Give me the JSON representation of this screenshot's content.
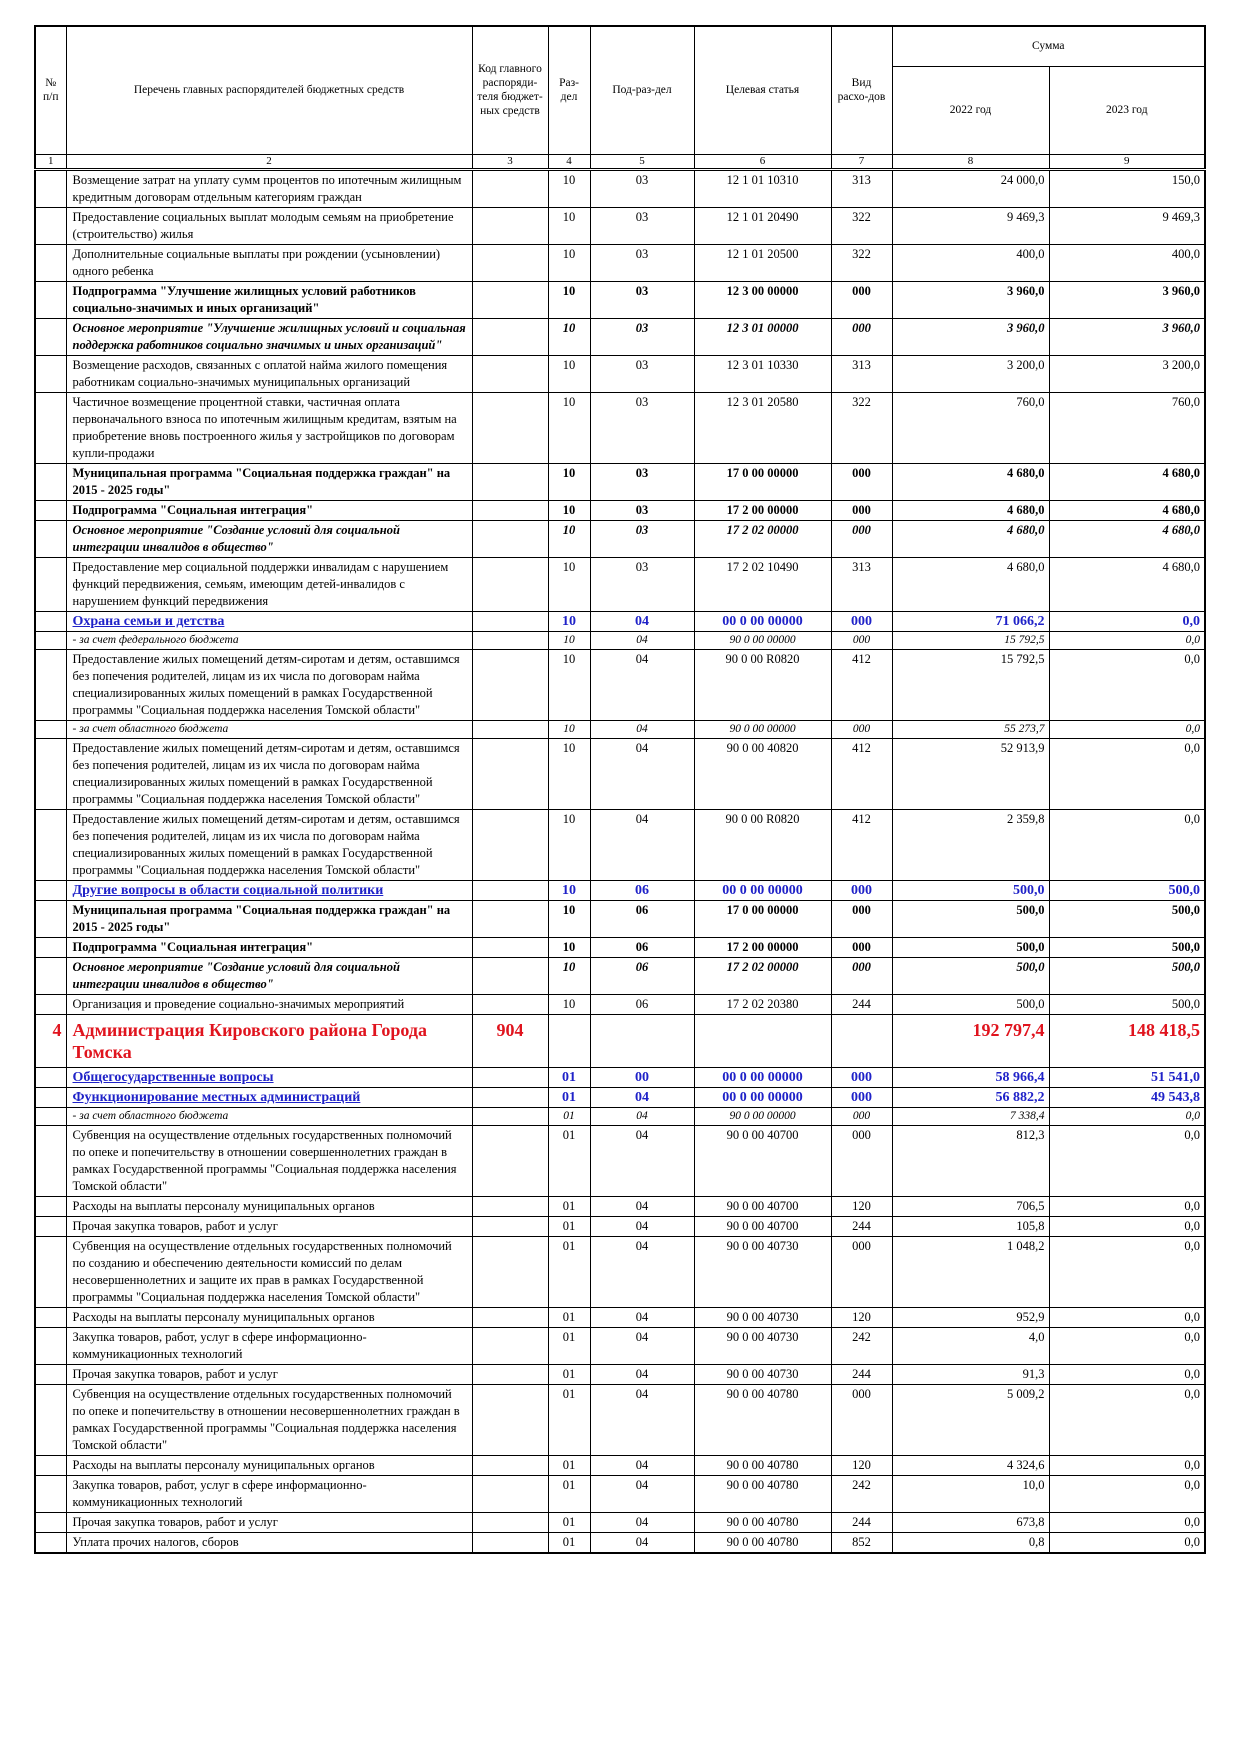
{
  "header": {
    "number": "№ п/п",
    "name": "Перечень главных распорядителей бюджетных средств",
    "code": "Код главного распоряди-теля бюджет-ных средств",
    "section": "Раз-дел",
    "subsection": "Под-раз-дел",
    "target": "Целевая статья",
    "kind": "Вид расхо-дов",
    "sum": "Сумма",
    "year1": "2022 год",
    "year2": "2023 год"
  },
  "column_numbers": [
    "1",
    "2",
    "3",
    "4",
    "5",
    "6",
    "7",
    "8",
    "9"
  ],
  "rows": [
    {
      "style": "normal",
      "name": "Возмещение затрат на уплату сумм процентов по ипотечным жилищным кредитным договорам отдельным категориям граждан",
      "section": "10",
      "subsection": "03",
      "target": "12 1 01 10310",
      "kind": "313",
      "y2022": "24 000,0",
      "y2023": "150,0"
    },
    {
      "style": "normal",
      "name": "Предоставление социальных выплат  молодым семьям на приобретение (строительство) жилья",
      "section": "10",
      "subsection": "03",
      "target": "12 1 01 20490",
      "kind": "322",
      "y2022": "9 469,3",
      "y2023": "9 469,3"
    },
    {
      "style": "normal",
      "name": "Дополнительные социальные выплаты при рождении (усыновлении) одного ребенка",
      "section": "10",
      "subsection": "03",
      "target": "12 1 01 20500",
      "kind": "322",
      "y2022": "400,0",
      "y2023": "400,0"
    },
    {
      "style": "bold",
      "name": "Подпрограмма \"Улучшение жилищных условий работников социально-значимых и иных организаций\"",
      "section": "10",
      "subsection": "03",
      "target": "12 3 00 00000",
      "kind": "000",
      "y2022": "3 960,0",
      "y2023": "3 960,0"
    },
    {
      "style": "bolditalic",
      "name": "Основное мероприятие \"Улучшение жилищных условий и социальная поддержка работников социально значимых и иных организаций\"",
      "section": "10",
      "subsection": "03",
      "target": "12 3 01 00000",
      "kind": "000",
      "y2022": "3 960,0",
      "y2023": "3 960,0"
    },
    {
      "style": "normal",
      "name": "Возмещение расходов, связанных с оплатой найма жилого помещения работникам социально-значимых муниципальных организаций",
      "section": "10",
      "subsection": "03",
      "target": "12 3 01 10330",
      "kind": "313",
      "y2022": "3 200,0",
      "y2023": "3 200,0"
    },
    {
      "style": "normal",
      "name": "Частичное возмещение процентной ставки, частичная оплата первоначального взноса по ипотечным жилищным кредитам, взятым на приобретение вновь построенного жилья у застройщиков по договорам купли-продажи",
      "section": "10",
      "subsection": "03",
      "target": "12 3 01 20580",
      "kind": "322",
      "y2022": "760,0",
      "y2023": "760,0"
    },
    {
      "style": "bold",
      "name": "Муниципальная программа \"Социальная поддержка граждан\" на 2015 - 2025 годы\"",
      "section": "10",
      "subsection": "03",
      "target": "17 0 00 00000",
      "kind": "000",
      "y2022": "4 680,0",
      "y2023": "4 680,0"
    },
    {
      "style": "bold",
      "name": "Подпрограмма \"Социальная интеграция\"",
      "section": "10",
      "subsection": "03",
      "target": "17 2 00 00000",
      "kind": "000",
      "y2022": "4 680,0",
      "y2023": "4 680,0"
    },
    {
      "style": "bolditalic",
      "name": "Основное мероприятие \"Создание условий для социальной интеграции инвалидов в общество\"",
      "section": "10",
      "subsection": "03",
      "target": "17 2 02 00000",
      "kind": "000",
      "y2022": "4 680,0",
      "y2023": "4 680,0"
    },
    {
      "style": "normal",
      "name": "Предоставление мер социальной поддержки инвалидам с нарушением функций передвижения, семьям, имеющим детей-инвалидов с нарушением функций передвижения",
      "section": "10",
      "subsection": "03",
      "target": "17 2 02 10490",
      "kind": "313",
      "y2022": "4 680,0",
      "y2023": "4 680,0"
    },
    {
      "style": "blue",
      "name": "Охрана семьи и детства",
      "section": "10",
      "subsection": "04",
      "target": "00 0 00 00000",
      "kind": "000",
      "y2022": "71 066,2",
      "y2023": "0,0"
    },
    {
      "style": "italic",
      "name": "- за счет федерального бюджета",
      "section": "10",
      "subsection": "04",
      "target": "90 0 00 00000",
      "kind": "000",
      "y2022": "15 792,5",
      "y2023": "0,0"
    },
    {
      "style": "normal",
      "name": "Предоставление жилых помещений детям-сиротам и детям, оставшимся без попечения родителей, лицам из их числа по договорам найма специализированных жилых помещений  в рамках Государственной программы \"Социальная поддержка населения Томской области\"",
      "section": "10",
      "subsection": "04",
      "target": "90 0 00 R0820",
      "kind": "412",
      "y2022": "15 792,5",
      "y2023": "0,0"
    },
    {
      "style": "italic",
      "name": "- за счет областного бюджета",
      "section": "10",
      "subsection": "04",
      "target": "90 0 00 00000",
      "kind": "000",
      "y2022": "55 273,7",
      "y2023": "0,0"
    },
    {
      "style": "normal",
      "name": "Предоставление жилых помещений детям-сиротам и детям, оставшимся без попечения родителей, лицам из их числа по договорам найма специализированных жилых помещений  в рамках Государственной программы \"Социальная поддержка населения Томской области\"",
      "section": "10",
      "subsection": "04",
      "target": "90 0 00 40820",
      "kind": "412",
      "y2022": "52 913,9",
      "y2023": "0,0"
    },
    {
      "style": "normal",
      "name": "Предоставление жилых помещений детям-сиротам и детям, оставшимся без попечения родителей, лицам из их числа по договорам найма специализированных жилых помещений  в рамках Государственной программы \"Социальная поддержка населения Томской области\"",
      "section": "10",
      "subsection": "04",
      "target": "90 0 00 R0820",
      "kind": "412",
      "y2022": "2 359,8",
      "y2023": "0,0"
    },
    {
      "style": "blue",
      "name": "Другие вопросы в области социальной политики",
      "section": "10",
      "subsection": "06",
      "target": "00 0 00 00000",
      "kind": "000",
      "y2022": "500,0",
      "y2023": "500,0"
    },
    {
      "style": "bold",
      "name": "Муниципальная программа \"Социальная поддержка граждан\" на 2015 - 2025 годы\"",
      "section": "10",
      "subsection": "06",
      "target": "17 0 00 00000",
      "kind": "000",
      "y2022": "500,0",
      "y2023": "500,0"
    },
    {
      "style": "bold",
      "name": "Подпрограмма \"Социальная интеграция\"",
      "section": "10",
      "subsection": "06",
      "target": "17 2 00 00000",
      "kind": "000",
      "y2022": "500,0",
      "y2023": "500,0"
    },
    {
      "style": "bolditalic",
      "name": "Основное мероприятие \"Создание условий для социальной интеграции инвалидов в общество\"",
      "section": "10",
      "subsection": "06",
      "target": "17 2 02 00000",
      "kind": "000",
      "y2022": "500,0",
      "y2023": "500,0"
    },
    {
      "style": "normal",
      "name": "Организация и проведение социально-значимых мероприятий",
      "section": "10",
      "subsection": "06",
      "target": "17 2 02 20380",
      "kind": "244",
      "y2022": "500,0",
      "y2023": "500,0"
    },
    {
      "style": "red",
      "number": "4",
      "name": "Администрация Кировского района Города Томска",
      "code": "904",
      "y2022": "192 797,4",
      "y2023": "148 418,5"
    },
    {
      "style": "blue",
      "name": "Общегосударственные вопросы",
      "section": "01",
      "subsection": "00",
      "target": "00 0 00 00000",
      "kind": "000",
      "y2022": "58 966,4",
      "y2023": "51 541,0"
    },
    {
      "style": "blue",
      "name": "Функционирование местных администраций",
      "section": "01",
      "subsection": "04",
      "target": "00 0 00 00000",
      "kind": "000",
      "y2022": "56 882,2",
      "y2023": "49 543,8"
    },
    {
      "style": "italic",
      "name": "- за счет областного бюджета",
      "section": "01",
      "subsection": "04",
      "target": "90 0 00 00000",
      "kind": "000",
      "y2022": "7 338,4",
      "y2023": "0,0"
    },
    {
      "style": "normal",
      "name": "Субвенция на осуществление отдельных государственных полномочий по опеке и попечительству в отношении совершеннолетних граждан в рамках Государственной программы \"Социальная поддержка населения Томской области\"",
      "section": "01",
      "subsection": "04",
      "target": "90 0 00 40700",
      "kind": "000",
      "y2022": "812,3",
      "y2023": "0,0"
    },
    {
      "style": "normal",
      "name": "Расходы на выплаты персоналу муниципальных органов",
      "section": "01",
      "subsection": "04",
      "target": "90 0 00 40700",
      "kind": "120",
      "y2022": "706,5",
      "y2023": "0,0"
    },
    {
      "style": "normal",
      "name": "Прочая закупка товаров, работ и услуг",
      "section": "01",
      "subsection": "04",
      "target": "90 0 00 40700",
      "kind": "244",
      "y2022": "105,8",
      "y2023": "0,0"
    },
    {
      "style": "normal",
      "name": "Субвенция на осуществление отдельных государственных полномочий по созданию и обеспечению деятельности комиссий по делам несовершеннолетних и защите их прав в рамках Государственной программы  \"Социальная поддержка населения Томской области\"",
      "section": "01",
      "subsection": "04",
      "target": "90 0 00 40730",
      "kind": "000",
      "y2022": "1 048,2",
      "y2023": "0,0"
    },
    {
      "style": "normal",
      "name": "Расходы на выплаты персоналу муниципальных органов",
      "section": "01",
      "subsection": "04",
      "target": "90 0 00 40730",
      "kind": "120",
      "y2022": "952,9",
      "y2023": "0,0"
    },
    {
      "style": "normal",
      "name": "Закупка товаров, работ, услуг в сфере информационно-коммуникационных технологий",
      "section": "01",
      "subsection": "04",
      "target": "90 0 00 40730",
      "kind": "242",
      "y2022": "4,0",
      "y2023": "0,0"
    },
    {
      "style": "normal",
      "name": "Прочая закупка товаров, работ и услуг",
      "section": "01",
      "subsection": "04",
      "target": "90 0 00 40730",
      "kind": "244",
      "y2022": "91,3",
      "y2023": "0,0"
    },
    {
      "style": "normal",
      "name": "Субвенция на осуществление отдельных государственных полномочий по опеке и попечительству в  отношении несовершеннолетних граждан в рамках Государственной программы \"Социальная поддержка населения Томской области\"",
      "section": "01",
      "subsection": "04",
      "target": "90 0 00 40780",
      "kind": "000",
      "y2022": "5 009,2",
      "y2023": "0,0"
    },
    {
      "style": "normal",
      "name": "Расходы на выплаты персоналу муниципальных органов",
      "section": "01",
      "subsection": "04",
      "target": "90 0 00 40780",
      "kind": "120",
      "y2022": "4 324,6",
      "y2023": "0,0"
    },
    {
      "style": "normal",
      "name": "Закупка товаров, работ, услуг в сфере информационно-коммуникационных технологий",
      "section": "01",
      "subsection": "04",
      "target": "90 0 00 40780",
      "kind": "242",
      "y2022": "10,0",
      "y2023": "0,0"
    },
    {
      "style": "normal",
      "name": "Прочая закупка товаров, работ и услуг",
      "section": "01",
      "subsection": "04",
      "target": "90 0 00 40780",
      "kind": "244",
      "y2022": "673,8",
      "y2023": "0,0"
    },
    {
      "style": "normal",
      "name": "Уплата прочих налогов, сборов",
      "section": "01",
      "subsection": "04",
      "target": "90 0 00 40780",
      "kind": "852",
      "y2022": "0,8",
      "y2023": "0,0"
    }
  ]
}
